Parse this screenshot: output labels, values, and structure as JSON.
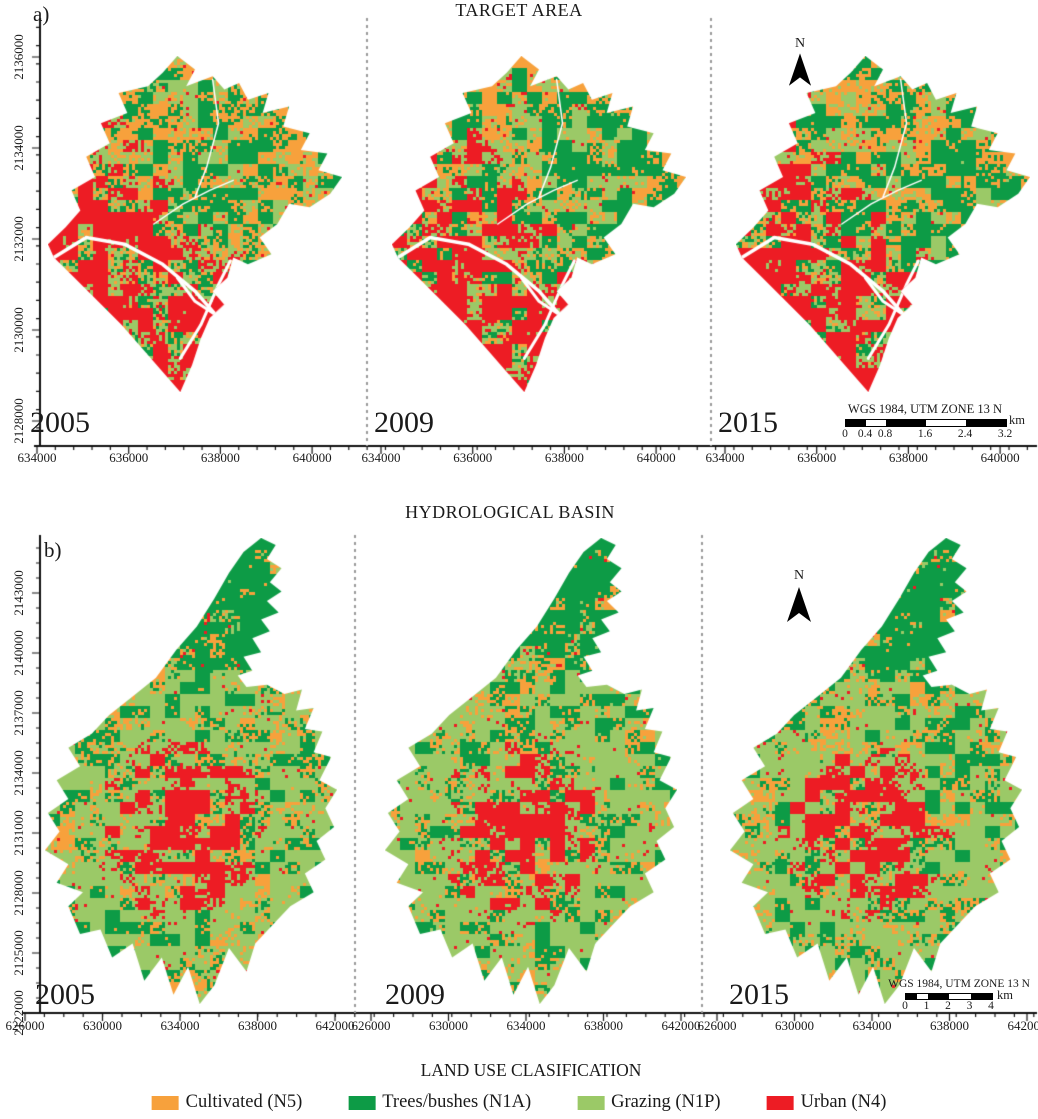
{
  "figure": {
    "road_color": "#FFFFFF",
    "axis_color": "#111111",
    "separator_color": "#9A9A9A",
    "panel_a": {
      "label": "a)",
      "title": "TARGET AREA",
      "years": [
        "2005",
        "2009",
        "2015"
      ],
      "north_label": "N",
      "y_ticks": [
        "2136000",
        "2134000",
        "2132000",
        "2130000",
        "2128000"
      ],
      "x_ticks": [
        "634000",
        "636000",
        "638000",
        "640000"
      ],
      "scalebar": {
        "crs": "WGS 1984, UTM ZONE 13 N",
        "unit": "km",
        "tick_labels": [
          "0",
          "0.4",
          "0.8",
          "1.6",
          "2.4",
          "3.2"
        ]
      }
    },
    "panel_b": {
      "label": "b)",
      "title": "HYDROLOGICAL BASIN",
      "years": [
        "2005",
        "2009",
        "2015"
      ],
      "north_label": "N",
      "y_ticks": [
        "2143000",
        "2140000",
        "2137000",
        "2134000",
        "2131000",
        "2128000",
        "2125000",
        "2122000"
      ],
      "x_ticks": [
        "626000",
        "630000",
        "634000",
        "638000",
        "642000"
      ],
      "scalebar": {
        "crs": "WGS 1984, UTM ZONE 13 N",
        "unit": "km",
        "tick_labels": [
          "0",
          "1",
          "2",
          "3",
          "4"
        ]
      }
    },
    "legend": {
      "title": "LAND USE CLASIFICATION",
      "items": [
        {
          "label": "Cultivated (N5)",
          "class_code": "N5",
          "color": "#F7A13C"
        },
        {
          "label": "Trees/bushes (N1A)",
          "class_code": "N1A",
          "color": "#0D9B46"
        },
        {
          "label": "Grazing (N1P)",
          "class_code": "N1P",
          "color": "#9BC967"
        },
        {
          "label": "Urban (N4)",
          "class_code": "N4",
          "color": "#ED1C24"
        }
      ]
    }
  }
}
